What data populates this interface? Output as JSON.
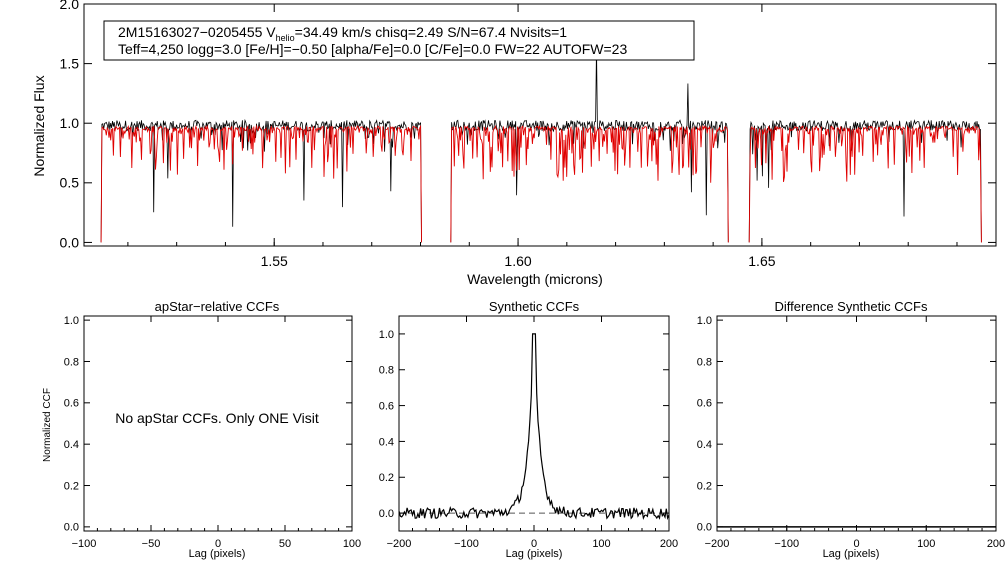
{
  "top": {
    "info_line1": "2M15163027−0205455  V",
    "info_vsub": "helio",
    "info_line1_rest": "=34.49 km/s  chisq=2.49  S/N=67.4  Nvisits=1",
    "info_line2": "Teff=4,250 logg=3.0 [Fe/H]=−0.50 [alpha/Fe]=0.0 [C/Fe]=0.0 FW=22 AUTOFW=23",
    "colors": {
      "observed": "#000000",
      "model": "#e00000"
    }
  },
  "ccf_panels": [
    {
      "title": "apStar−relative CCFs",
      "message": "No apStar CCFs.  Only ONE Visit"
    },
    {
      "title": "Synthetic CCFs"
    },
    {
      "title": "Difference Synthetic CCFs"
    }
  ],
  "chart_data": [
    {
      "id": "spectrum",
      "type": "line",
      "title": "",
      "xlabel": "Wavelength (microns)",
      "ylabel": "Normalized Flux",
      "xlim": [
        1.511,
        1.698
      ],
      "ylim": [
        -0.03,
        2.0
      ],
      "xticks": [
        1.55,
        1.6,
        1.65
      ],
      "xtick_labels": [
        "1.55",
        "1.60",
        "1.65"
      ],
      "yticks": [
        0.0,
        0.5,
        1.0,
        1.5,
        2.0
      ],
      "ytick_labels": [
        "0.0",
        "0.5",
        "1.0",
        "1.5",
        "2.0"
      ],
      "chips": [
        [
          1.5145,
          1.5802
        ],
        [
          1.5862,
          1.6431
        ],
        [
          1.6474,
          1.695
        ]
      ],
      "series": [
        {
          "name": "observed",
          "color": "#000000",
          "continuum": 0.98
        },
        {
          "name": "model",
          "color": "#e00000",
          "continuum": 0.96
        }
      ]
    },
    {
      "id": "ccf-apstar",
      "type": "line",
      "xlabel": "Lag (pixels)",
      "ylabel": "Normalized CCF",
      "xlim": [
        -100,
        100
      ],
      "ylim": [
        -0.02,
        1.02
      ],
      "xticks": [
        -100,
        -50,
        0,
        50,
        100
      ],
      "xtick_labels": [
        "−100",
        "−50",
        "0",
        "50",
        "100"
      ],
      "yticks": [
        0.0,
        0.2,
        0.4,
        0.6,
        0.8,
        1.0
      ],
      "ytick_labels": [
        "0.0",
        "0.2",
        "0.4",
        "0.6",
        "0.8",
        "1.0"
      ],
      "series": []
    },
    {
      "id": "ccf-synthetic",
      "type": "line",
      "xlabel": "Lag (pixels)",
      "xlim": [
        -200,
        200
      ],
      "ylim": [
        -0.1,
        1.1
      ],
      "xticks": [
        -200,
        -100,
        0,
        100,
        200
      ],
      "xtick_labels": [
        "−200",
        "−100",
        "0",
        "100",
        "200"
      ],
      "yticks": [
        0.0,
        0.2,
        0.4,
        0.6,
        0.8,
        1.0
      ],
      "ytick_labels": [
        "0.0",
        "0.2",
        "0.4",
        "0.6",
        "0.8",
        "1.0"
      ],
      "peak_lag": 0,
      "peak_value": 1.0,
      "baseline": 0.0,
      "series": [
        {
          "name": "synthetic-ccf",
          "color": "#000000"
        }
      ]
    },
    {
      "id": "ccf-difference",
      "type": "line",
      "xlabel": "Lag (pixels)",
      "xlim": [
        -200,
        200
      ],
      "ylim": [
        -0.02,
        1.02
      ],
      "xticks": [
        -200,
        -100,
        0,
        100,
        200
      ],
      "xtick_labels": [
        "−200",
        "−100",
        "0",
        "100",
        "200"
      ],
      "yticks": [
        0.0,
        0.2,
        0.4,
        0.6,
        0.8,
        1.0
      ],
      "ytick_labels": [
        "0.0",
        "0.2",
        "0.4",
        "0.6",
        "0.8",
        "1.0"
      ],
      "baseline": 0.0,
      "series": [
        {
          "name": "difference-ccf",
          "color": "#000000"
        }
      ]
    }
  ]
}
